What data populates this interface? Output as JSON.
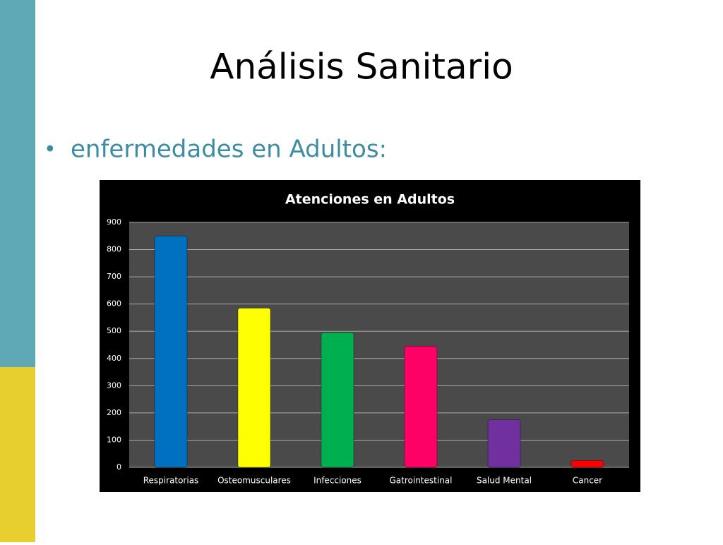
{
  "slide": {
    "title": "Análisis Sanitario",
    "bullet": "enfermedades en Adultos:"
  },
  "chart_data": {
    "type": "bar",
    "title": "Atenciones en Adultos",
    "categories": [
      "Respiratorias",
      "Osteomusculares",
      "Infecciones",
      "Gatrointestinal",
      "Salud Mental",
      "Cancer"
    ],
    "values": [
      850,
      585,
      495,
      445,
      175,
      25
    ],
    "colors": [
      "#0070c0",
      "#ffff00",
      "#00b050",
      "#ff0066",
      "#7030a0",
      "#ff0000"
    ],
    "ylim": [
      0,
      900
    ],
    "yticks": [
      0,
      100,
      200,
      300,
      400,
      500,
      600,
      700,
      800,
      900
    ],
    "grid": true
  }
}
